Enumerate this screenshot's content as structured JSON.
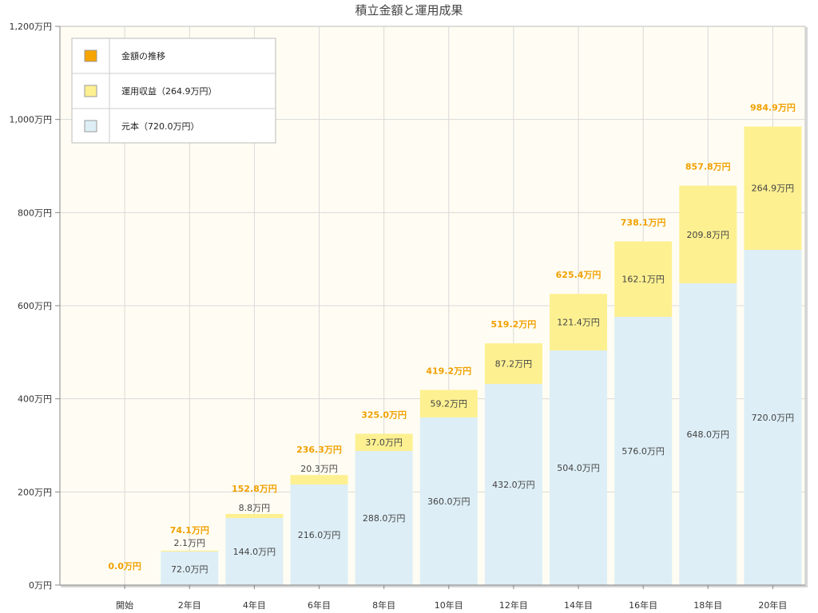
{
  "chart_data": {
    "type": "bar",
    "stacked": true,
    "title": "積立金額と運用成果",
    "categories": [
      "開始",
      "2年目",
      "4年目",
      "6年目",
      "8年目",
      "10年目",
      "12年目",
      "14年目",
      "16年目",
      "18年目",
      "20年目"
    ],
    "ylim": [
      0,
      1200
    ],
    "yticks": [
      0,
      200,
      400,
      600,
      800,
      1000,
      1200
    ],
    "ytick_labels": [
      "0万円",
      "200万円",
      "400万円",
      "600万円",
      "800万円",
      "1,000万円",
      "1,200万円"
    ],
    "grid": true,
    "legend_position": "top-left",
    "series": [
      {
        "name": "元本（720.0万円）",
        "color": "#ddeef6",
        "values": [
          0,
          72.0,
          144.0,
          216.0,
          288.0,
          360.0,
          432.0,
          504.0,
          576.0,
          648.0,
          720.0
        ],
        "labels": [
          "",
          "72.0万円",
          "144.0万円",
          "216.0万円",
          "288.0万円",
          "360.0万円",
          "432.0万円",
          "504.0万円",
          "576.0万円",
          "648.0万円",
          "720.0万円"
        ]
      },
      {
        "name": "運用収益（264.9万円）",
        "color": "#fdf091",
        "values": [
          0,
          2.1,
          8.8,
          20.3,
          37.0,
          59.2,
          87.2,
          121.4,
          162.1,
          209.8,
          264.9
        ],
        "labels": [
          "",
          "2.1万円",
          "8.8万円",
          "20.3万円",
          "37.0万円",
          "59.2万円",
          "87.2万円",
          "121.4万円",
          "162.1万円",
          "209.8万円",
          "264.9万円"
        ]
      }
    ],
    "totals": {
      "name": "金額の推移",
      "color": "#f6a500",
      "values": [
        0.0,
        74.1,
        152.8,
        236.3,
        325.0,
        419.2,
        519.2,
        625.4,
        738.1,
        857.8,
        984.9
      ],
      "labels": [
        "0.0万円",
        "74.1万円",
        "152.8万円",
        "236.3万円",
        "325.0万円",
        "419.2万円",
        "519.2万円",
        "625.4万円",
        "738.1万円",
        "857.8万円",
        "984.9万円"
      ]
    }
  }
}
